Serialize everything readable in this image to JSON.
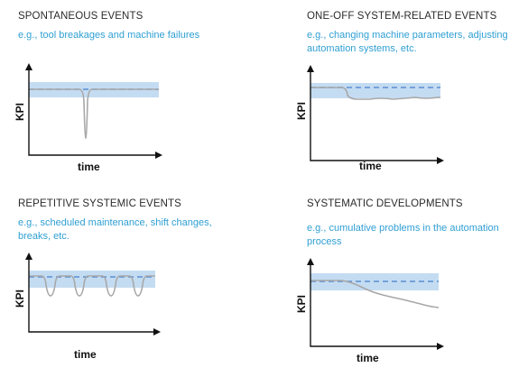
{
  "colors": {
    "title": "#2b2b2b",
    "subtitle": "#2f9fd3",
    "band": "#c4dcf2",
    "target_line": "#5b8fd1",
    "kpi_curve": "#a8a8a8",
    "axis": "#111111"
  },
  "panels": [
    {
      "title": "SPONTANEOUS EVENTS",
      "subtitle_lines": [
        "e.g., tool breakages and machine failures"
      ],
      "xlabel": "time",
      "ylabel": "KPI",
      "pattern": "single-dip"
    },
    {
      "title": "ONE-OFF SYSTEM-RELATED EVENTS",
      "subtitle_lines": [
        "e.g., changing machine parameters, adjusting",
        "automation systems, etc."
      ],
      "xlabel": "time",
      "ylabel": "KPI",
      "pattern": "step-down"
    },
    {
      "title": "REPETITIVE SYSTEMIC EVENTS",
      "subtitle_lines": [
        "e.g., scheduled maintenance, shift changes,",
        "breaks, etc."
      ],
      "xlabel": "time",
      "ylabel": "KPI",
      "pattern": "repeated-dips"
    },
    {
      "title": "SYSTEMATIC DEVELOPMENTS",
      "subtitle_lines": [
        "e.g., cumulative problems in the automation",
        "process"
      ],
      "xlabel": "time",
      "ylabel": "KPI",
      "pattern": "gradual-decline"
    }
  ]
}
